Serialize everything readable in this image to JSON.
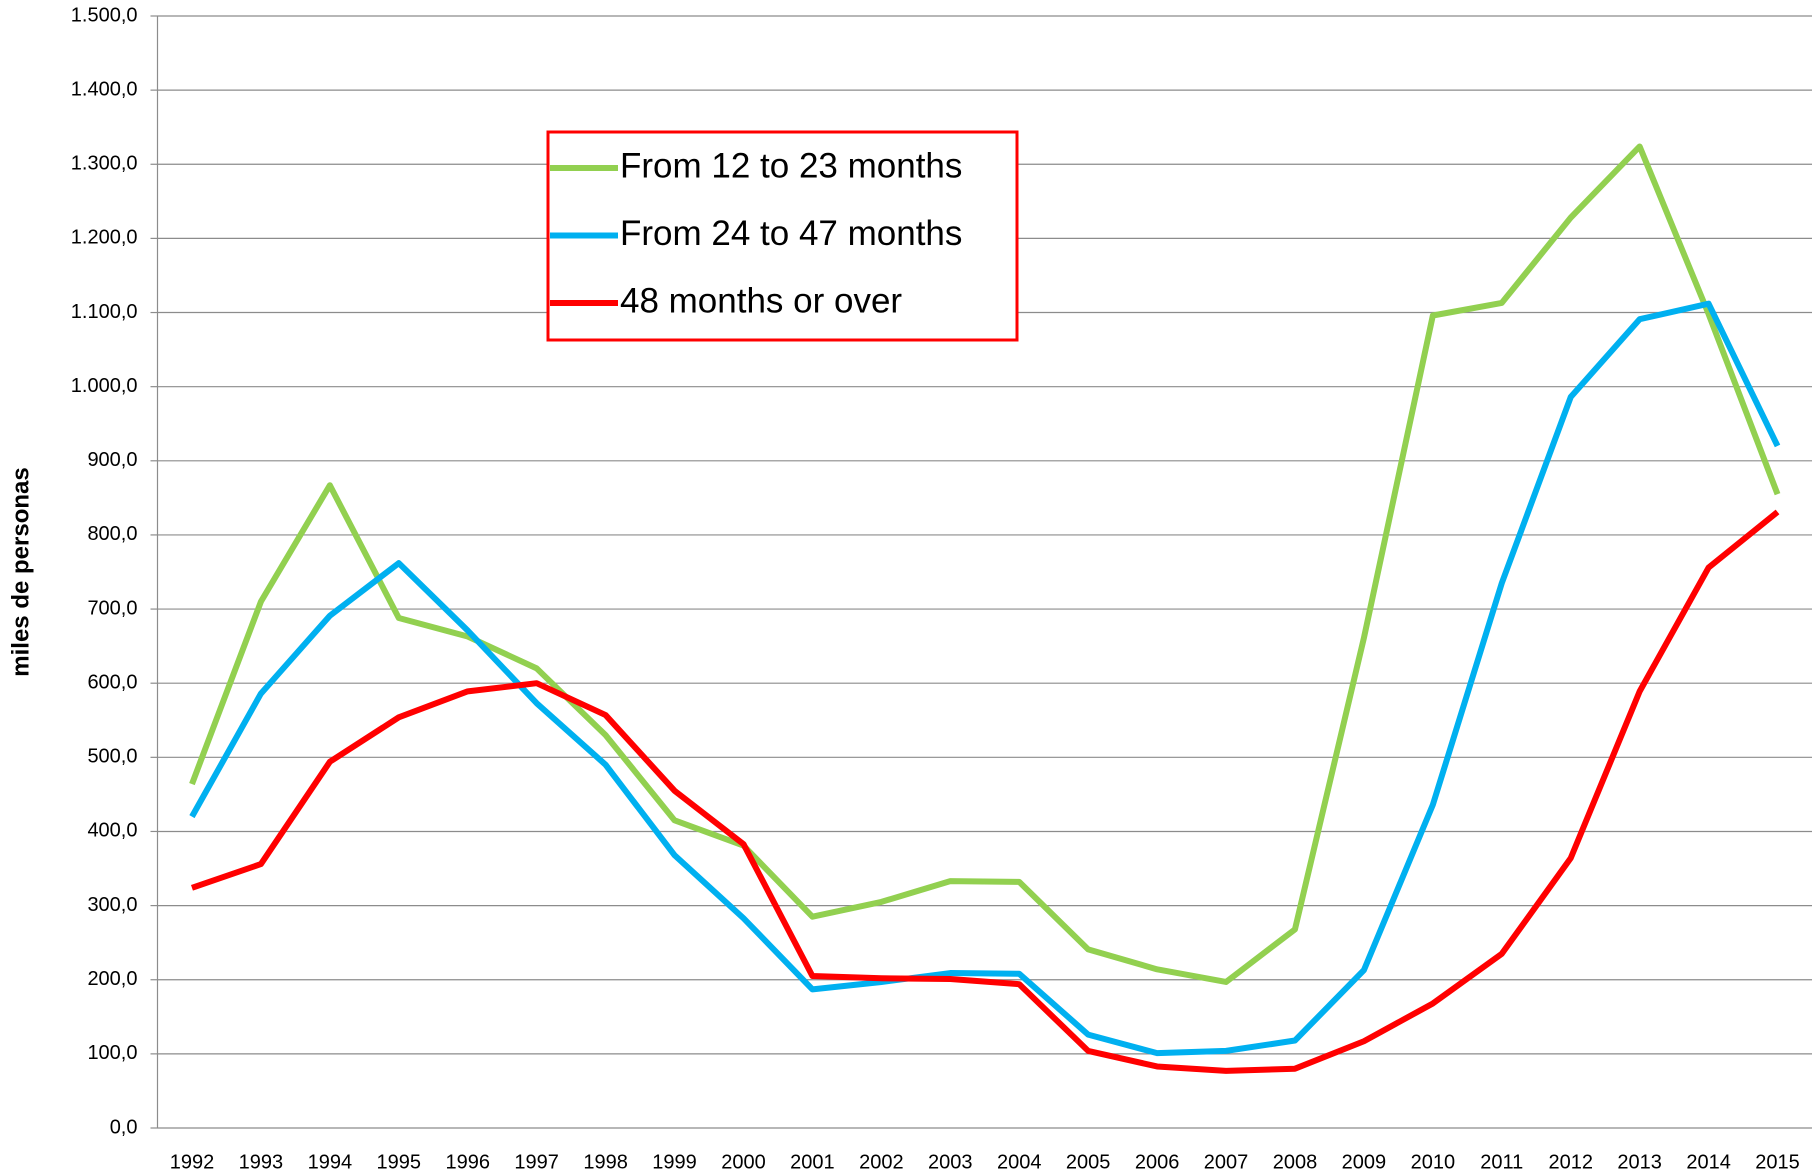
{
  "chart_data": {
    "type": "line",
    "y_label": "miles de personas",
    "categories": [
      "1992",
      "1993",
      "1994",
      "1995",
      "1996",
      "1997",
      "1998",
      "1999",
      "2000",
      "2001",
      "2002",
      "2003",
      "2004",
      "2005",
      "2006",
      "2007",
      "2008",
      "2009",
      "2010",
      "2011",
      "2012",
      "2013",
      "2014",
      "2015"
    ],
    "series": [
      {
        "name": "From 12 to 23 months",
        "color": "#92d050",
        "values": [
          464,
          710,
          867,
          688,
          663,
          620,
          530,
          415,
          381,
          285,
          305,
          333,
          332,
          241,
          214,
          197,
          268,
          661,
          1096,
          1113,
          1228,
          1324,
          1098,
          855
        ]
      },
      {
        "name": "From 24 to 47 months",
        "color": "#00b0f0",
        "values": [
          420,
          586,
          691,
          762,
          671,
          573,
          490,
          368,
          283,
          187,
          197,
          209,
          208,
          126,
          101,
          104,
          118,
          213,
          436,
          735,
          986,
          1091,
          1112,
          920
        ]
      },
      {
        "name": "48 months or over",
        "color": "#ff0000",
        "values": [
          324,
          356,
          494,
          554,
          589,
          600,
          557,
          455,
          383,
          205,
          202,
          201,
          194,
          104,
          83,
          77,
          80,
          117,
          168,
          235,
          364,
          589,
          756,
          831
        ]
      }
    ],
    "ylim": [
      0,
      1500
    ],
    "yticks": [
      {
        "value": 0,
        "label": "0,0"
      },
      {
        "value": 100,
        "label": "100,0"
      },
      {
        "value": 200,
        "label": "200,0"
      },
      {
        "value": 300,
        "label": "300,0"
      },
      {
        "value": 400,
        "label": "400,0"
      },
      {
        "value": 500,
        "label": "500,0"
      },
      {
        "value": 600,
        "label": "600,0"
      },
      {
        "value": 700,
        "label": "700,0"
      },
      {
        "value": 800,
        "label": "800,0"
      },
      {
        "value": 900,
        "label": "900,0"
      },
      {
        "value": 1000,
        "label": "1.000,0"
      },
      {
        "value": 1100,
        "label": "1.100,0"
      },
      {
        "value": 1200,
        "label": "1.200,0"
      },
      {
        "value": 1300,
        "label": "1.300,0"
      },
      {
        "value": 1400,
        "label": "1.400,0"
      },
      {
        "value": 1500,
        "label": "1.500,0"
      }
    ],
    "grid": true,
    "legend_position": "upper center"
  }
}
